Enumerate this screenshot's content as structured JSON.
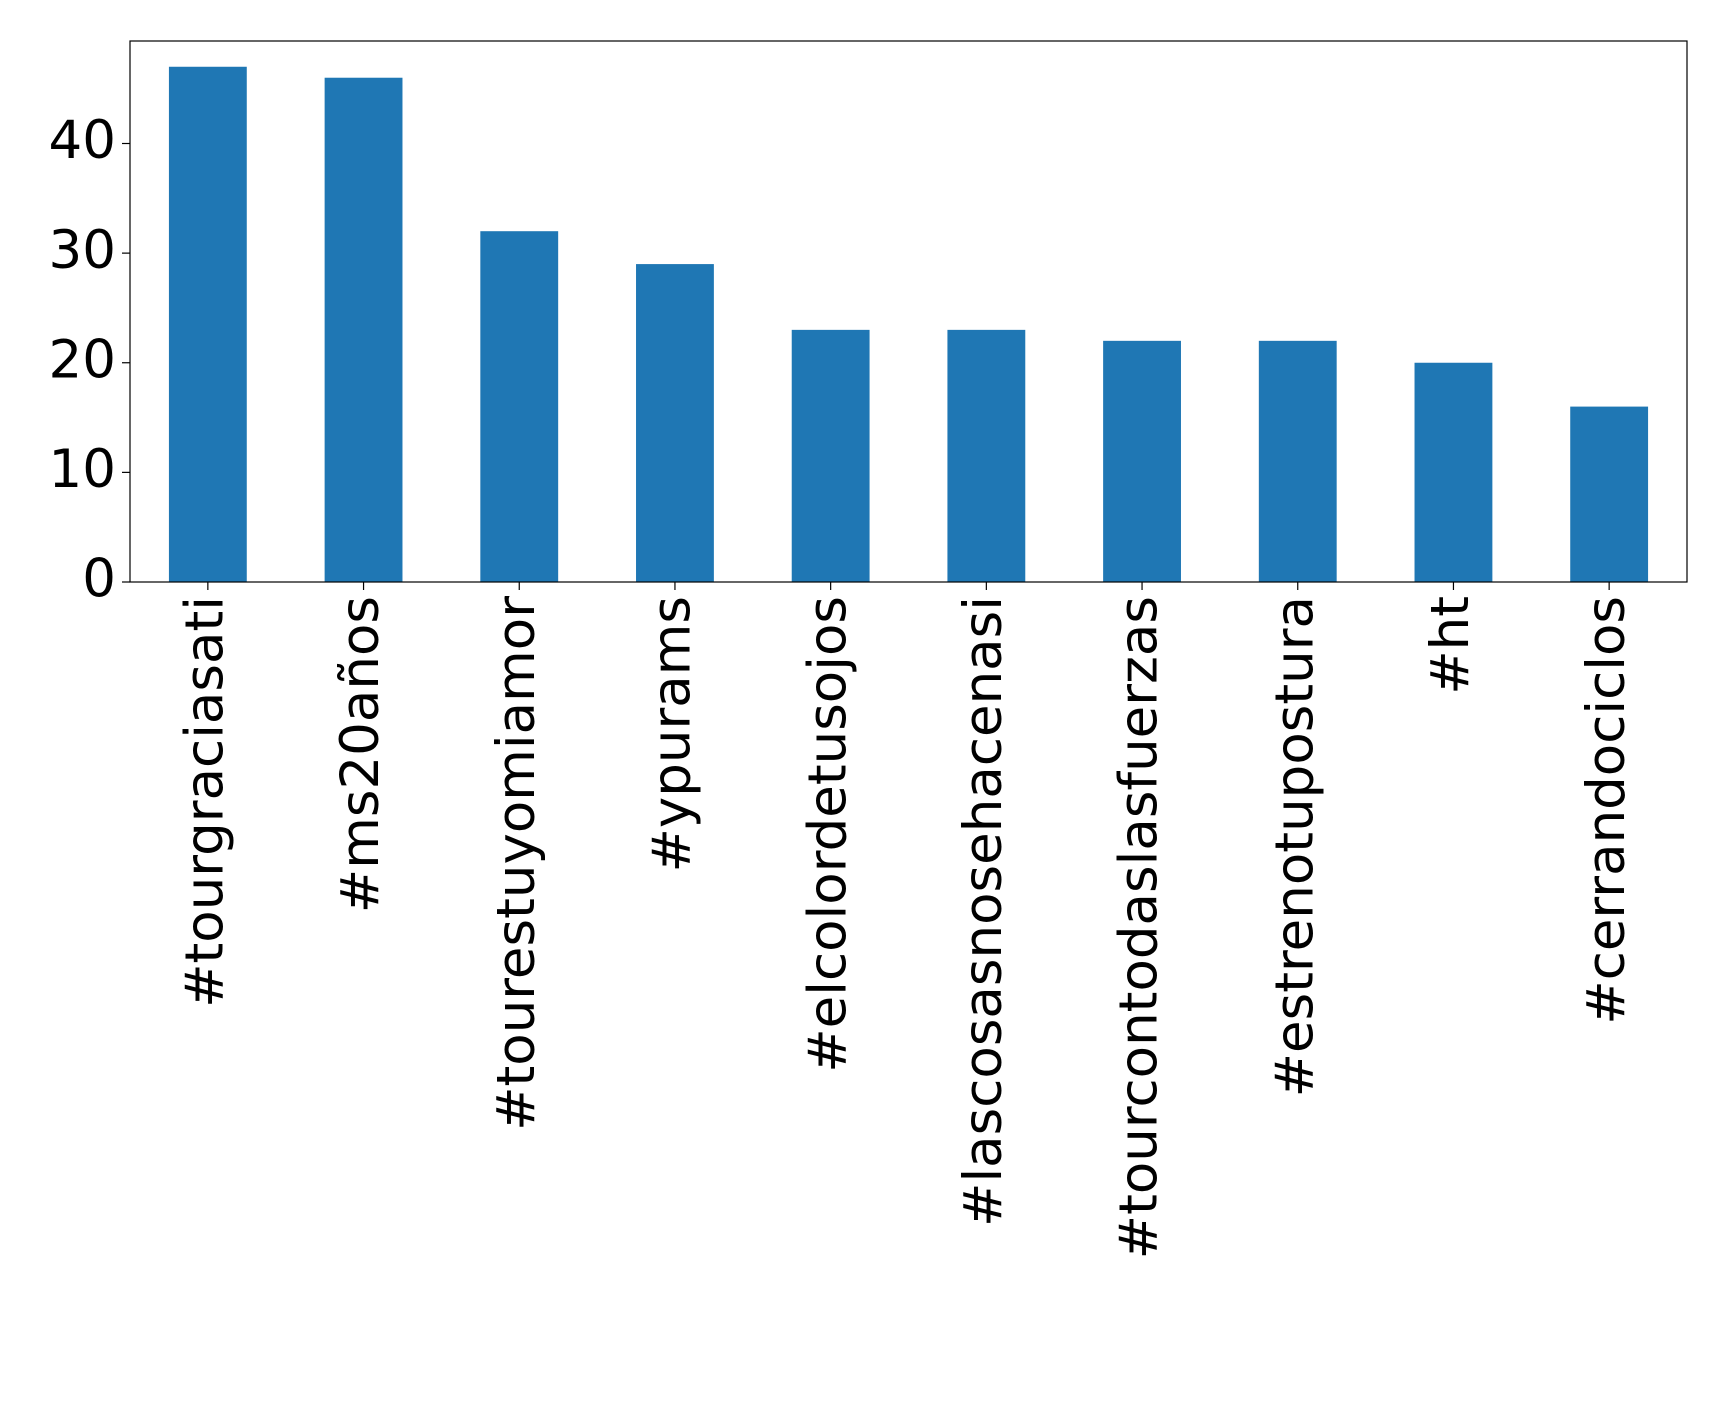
{
  "chart_data": {
    "type": "bar",
    "categories": [
      "#tourgraciasati",
      "#ms20años",
      "#tourestuyomiamor",
      "#ypurams",
      "#elcolordetusojos",
      "#lascosasnosehacenasi",
      "#tourcontodaslasfuerzas",
      "#estrenotupostura",
      "#ht",
      "#cerrandociclos"
    ],
    "values": [
      47,
      46,
      32,
      29,
      23,
      23,
      22,
      22,
      20,
      16
    ],
    "color": "#1f77b4",
    "ylim": [
      0,
      49.35
    ],
    "yticks": [
      0,
      10,
      20,
      30,
      40
    ],
    "grid": false
  }
}
